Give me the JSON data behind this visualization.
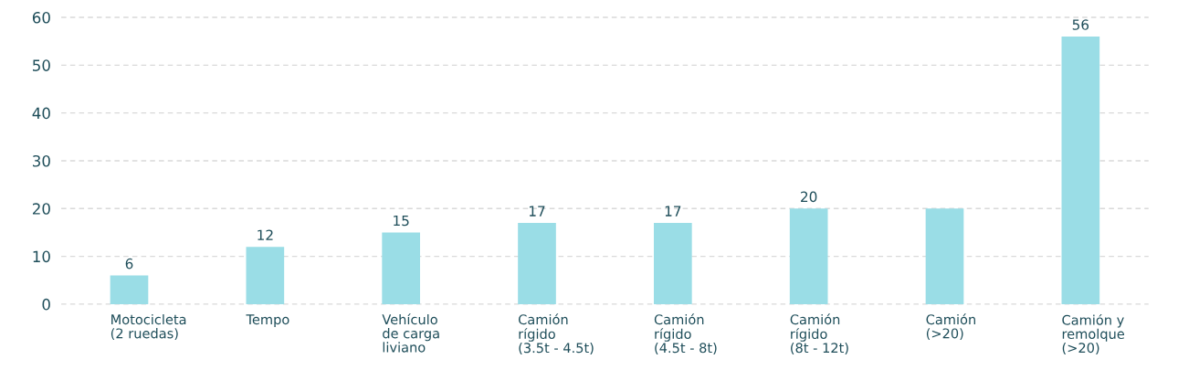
{
  "chart_data": {
    "type": "bar",
    "categories": [
      "Motocicleta\n(2 ruedas)",
      "Tempo",
      "Vehículo\nde carga\nliviano",
      "Camión\nrígido\n(3.5t - 4.5t)",
      "Camión\nrígido\n(4.5t - 8t)",
      "Camión\nrígido\n(8t - 12t)",
      "Camión\n(>20)",
      "Camión y\nremolque\n(>20)"
    ],
    "values": [
      6,
      12,
      15,
      17,
      17,
      20,
      20,
      56
    ],
    "value_labels": [
      "6",
      "12",
      "15",
      "17",
      "17",
      "20",
      null,
      "56"
    ],
    "color": "#9adde6",
    "ylim": [
      0,
      60
    ],
    "yticks": [
      0,
      10,
      20,
      30,
      40,
      50,
      60
    ],
    "grid": "y",
    "legend": false
  }
}
